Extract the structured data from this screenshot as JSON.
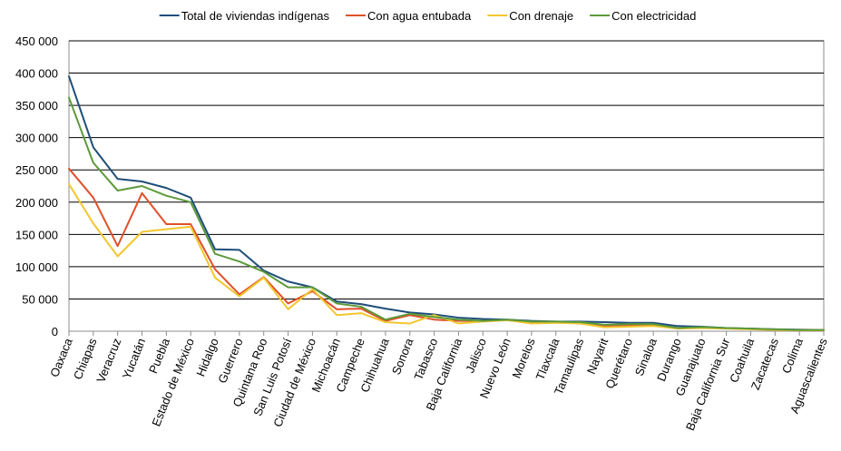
{
  "chart_data": {
    "type": "line",
    "title": "",
    "xlabel": "",
    "ylabel": "",
    "ylim": [
      0,
      450000
    ],
    "yticks": [
      0,
      50000,
      100000,
      150000,
      200000,
      250000,
      300000,
      350000,
      400000,
      450000
    ],
    "ytick_labels": [
      "0",
      "50 000",
      "100 000",
      "150 000",
      "200 000",
      "250 000",
      "300 000",
      "350 000",
      "400 000",
      "450 000"
    ],
    "grid": true,
    "legend_position": "top",
    "categories": [
      "Oaxaca",
      "Chiapas",
      "Veracruz",
      "Yucatán",
      "Puebla",
      "Estado de México",
      "Hidalgo",
      "Guerrero",
      "Quintana Roo",
      "San Luis Potosí",
      "Ciudad de México",
      "Michoacán",
      "Campeche",
      "Chihuahua",
      "Sonora",
      "Tabasco",
      "Baja California",
      "Jalisco",
      "Nuevo León",
      "Morelos",
      "Tlaxcala",
      "Tamaulipas",
      "Nayarit",
      "Querétaro",
      "Sinaloa",
      "Durango",
      "Guanajuato",
      "Baja California Sur",
      "Coahuila",
      "Zacatecas",
      "Colima",
      "Aguascalientes"
    ],
    "series": [
      {
        "name": "Total de viviendas indígenas",
        "color": "#1F4E79",
        "values": [
          395000,
          285000,
          236000,
          232000,
          222000,
          207000,
          127000,
          126000,
          94000,
          77000,
          68000,
          46000,
          42000,
          35000,
          29000,
          26000,
          21000,
          19000,
          18000,
          16000,
          15000,
          15000,
          14000,
          13000,
          13000,
          8000,
          7000,
          5000,
          4000,
          3000,
          2500,
          2000
        ]
      },
      {
        "name": "Con agua entubada",
        "color": "#E0502A",
        "values": [
          252000,
          207000,
          132000,
          214000,
          166000,
          166000,
          96000,
          57000,
          84000,
          43000,
          62000,
          34000,
          35000,
          16000,
          25000,
          18000,
          16000,
          16000,
          17000,
          14000,
          14000,
          12000,
          8000,
          9000,
          10000,
          5000,
          5500,
          4500,
          3500,
          2500,
          2000,
          1500
        ]
      },
      {
        "name": "Con drenaje",
        "color": "#F2C72E",
        "values": [
          228000,
          167000,
          116000,
          154000,
          158000,
          162000,
          83000,
          54000,
          83000,
          34000,
          65000,
          25000,
          28000,
          14000,
          12000,
          25000,
          12000,
          15000,
          17000,
          12000,
          13000,
          12000,
          6000,
          7000,
          8000,
          4000,
          5000,
          4000,
          3000,
          2000,
          1500,
          1500
        ]
      },
      {
        "name": "Con electricidad",
        "color": "#5C9A3A",
        "values": [
          362000,
          261000,
          218000,
          225000,
          210000,
          200000,
          120000,
          108000,
          92000,
          68000,
          68000,
          43000,
          38000,
          18000,
          27000,
          22000,
          18000,
          16000,
          18000,
          15000,
          15000,
          14000,
          10000,
          11000,
          11000,
          5000,
          6500,
          5000,
          4000,
          3000,
          2000,
          2000
        ]
      }
    ]
  }
}
